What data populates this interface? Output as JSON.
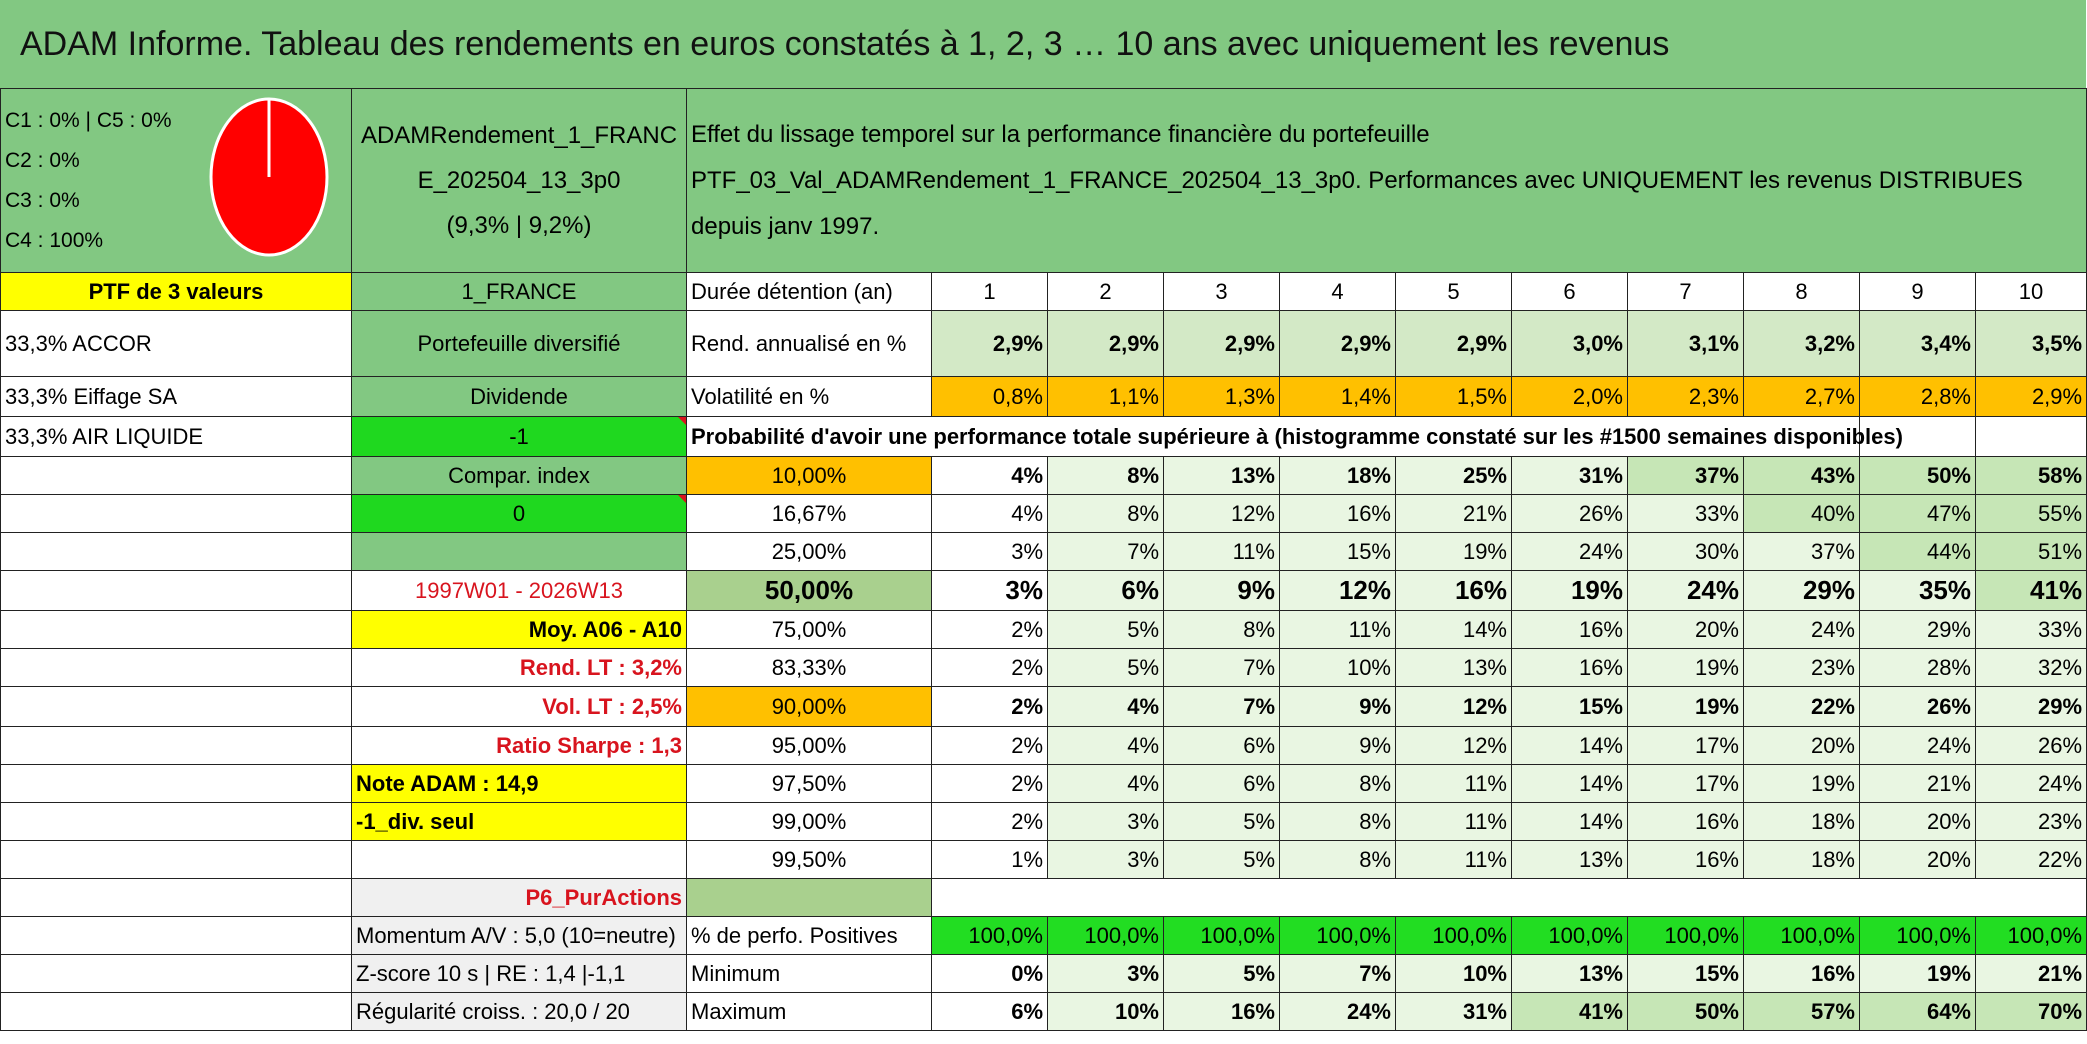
{
  "title": "ADAM Informe. Tableau des rendements en euros constatés à 1, 2, 3 … 10 ans avec uniquement les revenus",
  "classes": [
    "C1 : 0% | C5 : 0%",
    "C2 : 0%",
    "C3 : 0%",
    "C4 : 100%"
  ],
  "pie_colors": {
    "fill": "#ff0000",
    "stroke": "#ffffff"
  },
  "portfolio": {
    "line1": "ADAMRendement_1_FRANC",
    "line2": "E_202504_13_3p0",
    "line3": "(9,3% | 9,2%)"
  },
  "description": [
    "Effet du lissage temporel sur la performance financière du portefeuille",
    "PTF_03_Val_ADAMRendement_1_FRANCE_202504_13_3p0. Performances avec UNIQUEMENT les revenus DISTRIBUES",
    "depuis janv 1997."
  ],
  "col_a": {
    "r1": "PTF de 3 valeurs",
    "r2": "33,3% ACCOR",
    "r3": "33,3% Eiffage SA",
    "r4": "33,3% AIR LIQUIDE",
    "note": "Note ADAM : 14,9",
    "div": "-1_div. seul",
    "momentum": "Momentum A/V : 5,0 (10=neutre)",
    "zscore": "Z-score 10 s | RE : 1,4 |-1,1",
    "regul": "Régularité croiss. : 20,0 / 20"
  },
  "col_b": {
    "r1": "1_FRANCE",
    "r2": "Portefeuille diversifié",
    "r3": "Dividende",
    "r4": "-1",
    "r5": "Compar. index",
    "r6": "0",
    "r8": "1997W01 - 2026W13",
    "r9": "Moy. A06 - A10",
    "r10": "Rend. LT : 3,2%",
    "r11": "Vol. LT : 2,5%",
    "r12": "Ratio Sharpe : 1,3",
    "r16": "P6_PurActions"
  },
  "table": {
    "duree_label": "Durée détention (an)",
    "years": [
      "1",
      "2",
      "3",
      "4",
      "5",
      "6",
      "7",
      "8",
      "9",
      "10"
    ],
    "rend_label": "Rend. annualisé en %",
    "rend": [
      "2,9%",
      "2,9%",
      "2,9%",
      "2,9%",
      "2,9%",
      "3,0%",
      "3,1%",
      "3,2%",
      "3,4%",
      "3,5%"
    ],
    "vol_label": "Volatilité en %",
    "vol": [
      "0,8%",
      "1,1%",
      "1,3%",
      "1,4%",
      "1,5%",
      "2,0%",
      "2,3%",
      "2,7%",
      "2,8%",
      "2,9%"
    ],
    "prob_label": "Probabilité d'avoir une performance totale supérieure à (histogramme constaté sur les #1500 semaines disponibles)",
    "prob_rows": [
      {
        "pct": "10,00%",
        "values": [
          "4%",
          "8%",
          "13%",
          "18%",
          "25%",
          "31%",
          "37%",
          "43%",
          "50%",
          "58%"
        ]
      },
      {
        "pct": "16,67%",
        "values": [
          "4%",
          "8%",
          "12%",
          "16%",
          "21%",
          "26%",
          "33%",
          "40%",
          "47%",
          "55%"
        ]
      },
      {
        "pct": "25,00%",
        "values": [
          "3%",
          "7%",
          "11%",
          "15%",
          "19%",
          "24%",
          "30%",
          "37%",
          "44%",
          "51%"
        ]
      },
      {
        "pct": "50,00%",
        "values": [
          "3%",
          "6%",
          "9%",
          "12%",
          "16%",
          "19%",
          "24%",
          "29%",
          "35%",
          "41%"
        ]
      },
      {
        "pct": "75,00%",
        "values": [
          "2%",
          "5%",
          "8%",
          "11%",
          "14%",
          "16%",
          "20%",
          "24%",
          "29%",
          "33%"
        ]
      },
      {
        "pct": "83,33%",
        "values": [
          "2%",
          "5%",
          "7%",
          "10%",
          "13%",
          "16%",
          "19%",
          "23%",
          "28%",
          "32%"
        ]
      },
      {
        "pct": "90,00%",
        "values": [
          "2%",
          "4%",
          "7%",
          "9%",
          "12%",
          "15%",
          "19%",
          "22%",
          "26%",
          "29%"
        ]
      },
      {
        "pct": "95,00%",
        "values": [
          "2%",
          "4%",
          "6%",
          "9%",
          "12%",
          "14%",
          "17%",
          "20%",
          "24%",
          "26%"
        ]
      },
      {
        "pct": "97,50%",
        "values": [
          "2%",
          "4%",
          "6%",
          "8%",
          "11%",
          "14%",
          "17%",
          "19%",
          "21%",
          "24%"
        ]
      },
      {
        "pct": "99,00%",
        "values": [
          "2%",
          "3%",
          "5%",
          "8%",
          "11%",
          "14%",
          "16%",
          "18%",
          "20%",
          "23%"
        ]
      },
      {
        "pct": "99,50%",
        "values": [
          "1%",
          "3%",
          "5%",
          "8%",
          "11%",
          "13%",
          "16%",
          "18%",
          "20%",
          "22%"
        ]
      }
    ],
    "pos_label": "% de perfo. Positives",
    "pos": [
      "100,0%",
      "100,0%",
      "100,0%",
      "100,0%",
      "100,0%",
      "100,0%",
      "100,0%",
      "100,0%",
      "100,0%",
      "100,0%"
    ],
    "min_label": "Minimum",
    "min": [
      "0%",
      "3%",
      "5%",
      "7%",
      "10%",
      "13%",
      "15%",
      "16%",
      "19%",
      "21%"
    ],
    "max_label": "Maximum",
    "max": [
      "6%",
      "10%",
      "16%",
      "24%",
      "31%",
      "41%",
      "50%",
      "57%",
      "64%",
      "70%"
    ]
  }
}
